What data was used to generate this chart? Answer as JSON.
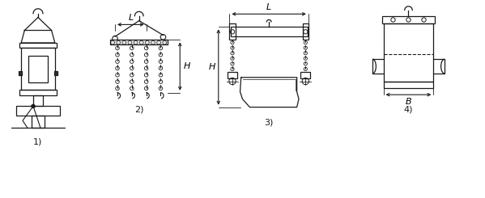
{
  "background_color": "#ffffff",
  "line_color": "#1a1a1a",
  "label_color": "#1a1a1a",
  "labels": [
    "1)",
    "2)",
    "3)",
    "4)"
  ],
  "dim_L2": "L",
  "dim_H2": "H",
  "dim_L3": "L",
  "dim_H3": "H",
  "dim_B4": "B",
  "figsize": [
    5.99,
    2.45
  ],
  "dpi": 100
}
